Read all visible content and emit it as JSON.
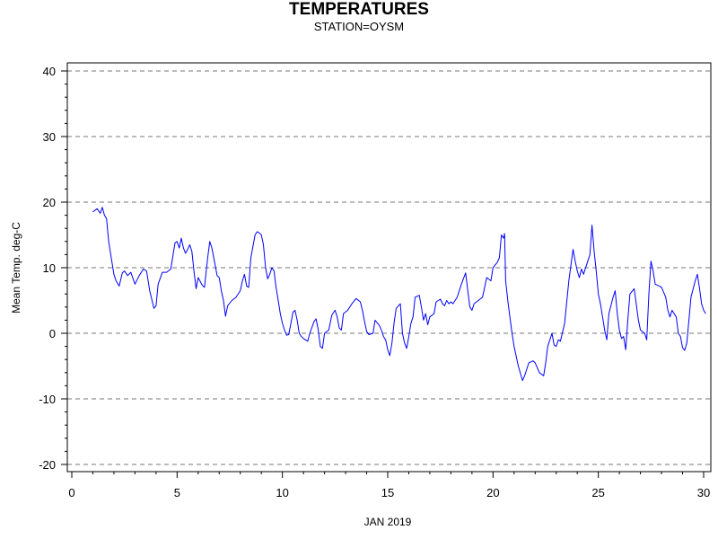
{
  "chart_data": {
    "type": "line",
    "title": "TEMPERATURES",
    "subtitle": "STATION=OYSM",
    "xlabel": "JAN 2019",
    "ylabel": "Mean Temp. deg-C",
    "xlim": [
      0,
      30
    ],
    "ylim": [
      -20,
      40
    ],
    "xticks": [
      0,
      5,
      10,
      15,
      20,
      25,
      30
    ],
    "yticks": [
      -20,
      -10,
      0,
      10,
      20,
      30,
      40
    ],
    "grid": "horizontal-dashed",
    "line_color": "#0000ff",
    "series": [
      {
        "points": [
          [
            1.0,
            18.5
          ],
          [
            1.2,
            19.0
          ],
          [
            1.35,
            18.3
          ],
          [
            1.45,
            19.2
          ],
          [
            1.55,
            18.0
          ],
          [
            1.65,
            17.5
          ],
          [
            1.75,
            14.0
          ],
          [
            1.85,
            12.0
          ],
          [
            2.0,
            9.0
          ],
          [
            2.1,
            8.0
          ],
          [
            2.25,
            7.2
          ],
          [
            2.4,
            9.2
          ],
          [
            2.5,
            9.5
          ],
          [
            2.65,
            8.8
          ],
          [
            2.8,
            9.3
          ],
          [
            3.0,
            7.5
          ],
          [
            3.2,
            8.8
          ],
          [
            3.4,
            9.8
          ],
          [
            3.55,
            9.5
          ],
          [
            3.7,
            6.5
          ],
          [
            3.9,
            3.8
          ],
          [
            4.0,
            4.2
          ],
          [
            4.1,
            7.5
          ],
          [
            4.3,
            9.3
          ],
          [
            4.5,
            9.3
          ],
          [
            4.7,
            9.8
          ],
          [
            4.9,
            13.8
          ],
          [
            5.0,
            14.0
          ],
          [
            5.1,
            13.0
          ],
          [
            5.2,
            14.5
          ],
          [
            5.3,
            13.0
          ],
          [
            5.4,
            12.2
          ],
          [
            5.5,
            12.8
          ],
          [
            5.6,
            13.5
          ],
          [
            5.7,
            12.5
          ],
          [
            5.8,
            9.5
          ],
          [
            5.9,
            6.8
          ],
          [
            6.0,
            8.5
          ],
          [
            6.2,
            7.3
          ],
          [
            6.3,
            7.0
          ],
          [
            6.45,
            11.5
          ],
          [
            6.55,
            14.0
          ],
          [
            6.65,
            13.0
          ],
          [
            6.8,
            10.5
          ],
          [
            6.9,
            8.8
          ],
          [
            7.0,
            8.5
          ],
          [
            7.1,
            6.5
          ],
          [
            7.2,
            5.0
          ],
          [
            7.3,
            2.6
          ],
          [
            7.4,
            4.2
          ],
          [
            7.6,
            5.0
          ],
          [
            7.8,
            5.5
          ],
          [
            8.0,
            6.5
          ],
          [
            8.1,
            8.0
          ],
          [
            8.2,
            9.0
          ],
          [
            8.3,
            7.2
          ],
          [
            8.4,
            7.0
          ],
          [
            8.5,
            11.5
          ],
          [
            8.7,
            15.0
          ],
          [
            8.8,
            15.5
          ],
          [
            8.9,
            15.3
          ],
          [
            9.0,
            15.0
          ],
          [
            9.1,
            13.5
          ],
          [
            9.2,
            10.0
          ],
          [
            9.3,
            8.3
          ],
          [
            9.4,
            9.0
          ],
          [
            9.5,
            10.0
          ],
          [
            9.6,
            9.5
          ],
          [
            9.7,
            7.0
          ],
          [
            9.8,
            5.0
          ],
          [
            9.9,
            3.0
          ],
          [
            10.0,
            1.5
          ],
          [
            10.1,
            0.5
          ],
          [
            10.2,
            -0.3
          ],
          [
            10.3,
            -0.2
          ],
          [
            10.4,
            1.5
          ],
          [
            10.5,
            3.2
          ],
          [
            10.6,
            3.5
          ],
          [
            10.7,
            2.0
          ],
          [
            10.8,
            0.0
          ],
          [
            10.9,
            -0.5
          ],
          [
            11.0,
            -0.8
          ],
          [
            11.2,
            -1.2
          ],
          [
            11.3,
            0.0
          ],
          [
            11.5,
            1.8
          ],
          [
            11.6,
            2.2
          ],
          [
            11.7,
            0.5
          ],
          [
            11.8,
            -2.0
          ],
          [
            11.9,
            -2.3
          ],
          [
            12.0,
            0.0
          ],
          [
            12.2,
            0.5
          ],
          [
            12.35,
            2.8
          ],
          [
            12.5,
            3.5
          ],
          [
            12.6,
            2.5
          ],
          [
            12.7,
            0.8
          ],
          [
            12.8,
            0.5
          ],
          [
            12.9,
            3.0
          ],
          [
            13.1,
            3.5
          ],
          [
            13.3,
            4.5
          ],
          [
            13.5,
            5.3
          ],
          [
            13.7,
            4.8
          ],
          [
            13.8,
            3.5
          ],
          [
            13.9,
            1.8
          ],
          [
            14.0,
            0.3
          ],
          [
            14.1,
            -0.2
          ],
          [
            14.3,
            0.0
          ],
          [
            14.4,
            2.0
          ],
          [
            14.6,
            1.2
          ],
          [
            14.7,
            0.5
          ],
          [
            14.8,
            -0.5
          ],
          [
            14.9,
            -1.0
          ],
          [
            15.0,
            -2.5
          ],
          [
            15.1,
            -3.4
          ],
          [
            15.2,
            -1.5
          ],
          [
            15.3,
            1.5
          ],
          [
            15.4,
            3.8
          ],
          [
            15.6,
            4.5
          ],
          [
            15.7,
            0.0
          ],
          [
            15.8,
            -1.5
          ],
          [
            15.9,
            -2.3
          ],
          [
            16.0,
            -0.5
          ],
          [
            16.1,
            1.5
          ],
          [
            16.2,
            2.5
          ],
          [
            16.3,
            5.5
          ],
          [
            16.5,
            5.8
          ],
          [
            16.6,
            4.0
          ],
          [
            16.7,
            2.0
          ],
          [
            16.8,
            3.0
          ],
          [
            16.9,
            1.3
          ],
          [
            17.0,
            2.5
          ],
          [
            17.2,
            3.0
          ],
          [
            17.3,
            4.8
          ],
          [
            17.5,
            5.2
          ],
          [
            17.6,
            4.5
          ],
          [
            17.7,
            4.2
          ],
          [
            17.8,
            5.0
          ],
          [
            17.9,
            4.5
          ],
          [
            18.0,
            4.8
          ],
          [
            18.1,
            4.5
          ],
          [
            18.3,
            5.5
          ],
          [
            18.5,
            7.5
          ],
          [
            18.7,
            9.2
          ],
          [
            18.8,
            6.5
          ],
          [
            18.9,
            4.0
          ],
          [
            19.0,
            3.5
          ],
          [
            19.1,
            4.5
          ],
          [
            19.3,
            5.0
          ],
          [
            19.5,
            5.5
          ],
          [
            19.7,
            8.5
          ],
          [
            19.9,
            8.0
          ],
          [
            20.0,
            10.0
          ],
          [
            20.2,
            10.8
          ],
          [
            20.3,
            11.5
          ],
          [
            20.4,
            15.0
          ],
          [
            20.5,
            14.5
          ],
          [
            20.55,
            15.2
          ],
          [
            20.6,
            8.0
          ],
          [
            20.7,
            5.0
          ],
          [
            20.8,
            2.5
          ],
          [
            20.9,
            0.0
          ],
          [
            21.0,
            -2.0
          ],
          [
            21.2,
            -5.0
          ],
          [
            21.4,
            -7.2
          ],
          [
            21.5,
            -6.5
          ],
          [
            21.7,
            -4.5
          ],
          [
            21.9,
            -4.2
          ],
          [
            22.0,
            -4.5
          ],
          [
            22.2,
            -6.0
          ],
          [
            22.4,
            -6.5
          ],
          [
            22.5,
            -4.5
          ],
          [
            22.6,
            -2.0
          ],
          [
            22.8,
            0.0
          ],
          [
            22.9,
            -1.8
          ],
          [
            23.0,
            -2.0
          ],
          [
            23.1,
            -1.0
          ],
          [
            23.2,
            -1.2
          ],
          [
            23.4,
            1.5
          ],
          [
            23.6,
            8.0
          ],
          [
            23.8,
            12.8
          ],
          [
            23.9,
            11.0
          ],
          [
            24.0,
            9.5
          ],
          [
            24.1,
            8.5
          ],
          [
            24.2,
            9.8
          ],
          [
            24.3,
            9.0
          ],
          [
            24.5,
            11.0
          ],
          [
            24.6,
            12.0
          ],
          [
            24.7,
            16.5
          ],
          [
            24.8,
            12.5
          ],
          [
            24.9,
            9.5
          ],
          [
            25.0,
            6.0
          ],
          [
            25.1,
            4.5
          ],
          [
            25.2,
            2.5
          ],
          [
            25.3,
            0.5
          ],
          [
            25.4,
            -1.0
          ],
          [
            25.5,
            3.0
          ],
          [
            25.7,
            5.5
          ],
          [
            25.8,
            6.5
          ],
          [
            25.9,
            3.0
          ],
          [
            26.0,
            0.5
          ],
          [
            26.1,
            -0.8
          ],
          [
            26.2,
            -0.5
          ],
          [
            26.3,
            -2.5
          ],
          [
            26.4,
            2.0
          ],
          [
            26.5,
            6.0
          ],
          [
            26.7,
            6.8
          ],
          [
            26.8,
            4.5
          ],
          [
            26.9,
            2.0
          ],
          [
            27.0,
            0.5
          ],
          [
            27.2,
            0.0
          ],
          [
            27.3,
            -1.0
          ],
          [
            27.4,
            6.0
          ],
          [
            27.5,
            11.0
          ],
          [
            27.6,
            9.5
          ],
          [
            27.7,
            7.5
          ],
          [
            27.9,
            7.2
          ],
          [
            28.0,
            7.0
          ],
          [
            28.2,
            5.5
          ],
          [
            28.3,
            3.5
          ],
          [
            28.4,
            2.5
          ],
          [
            28.5,
            3.5
          ],
          [
            28.6,
            3.0
          ],
          [
            28.7,
            2.5
          ],
          [
            28.8,
            0.0
          ],
          [
            28.9,
            -0.5
          ],
          [
            29.0,
            -2.2
          ],
          [
            29.1,
            -2.6
          ],
          [
            29.2,
            -1.5
          ],
          [
            29.3,
            2.0
          ],
          [
            29.4,
            5.5
          ],
          [
            29.6,
            8.0
          ],
          [
            29.7,
            9.0
          ],
          [
            29.8,
            7.0
          ],
          [
            29.9,
            4.5
          ],
          [
            30.0,
            3.5
          ],
          [
            30.1,
            3.0
          ]
        ]
      }
    ]
  }
}
